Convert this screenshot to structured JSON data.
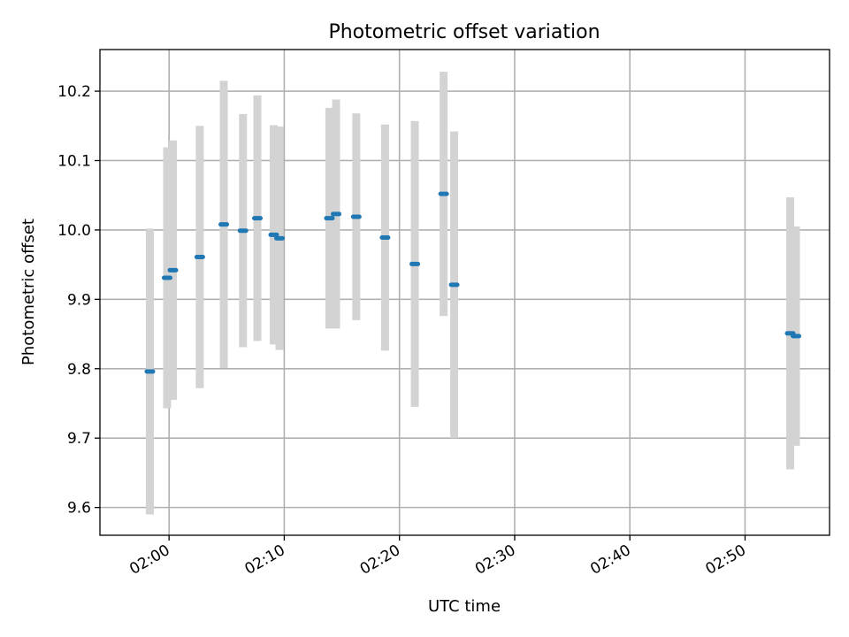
{
  "chart_data": {
    "type": "scatter",
    "title": "Photometric offset variation",
    "xlabel": "UTC time",
    "ylabel": "Photometric offset",
    "x_is_time": true,
    "xlim": [
      "01:54:00",
      "02:57:20"
    ],
    "ylim": [
      9.56,
      10.26
    ],
    "x_ticks": [
      "02:00",
      "02:10",
      "02:20",
      "02:30",
      "02:40",
      "02:50"
    ],
    "y_ticks": [
      "9.6",
      "9.7",
      "9.8",
      "9.9",
      "10.0",
      "10.1",
      "10.2"
    ],
    "grid": true,
    "point_color": "#1f77b4",
    "errorbar_color": "#d3d3d3",
    "points": [
      {
        "x": "01:58:20",
        "y": 9.796,
        "yerr": 0.206
      },
      {
        "x": "01:59:50",
        "y": 9.931,
        "yerr": 0.188
      },
      {
        "x": "02:00:20",
        "y": 9.942,
        "yerr": 0.187
      },
      {
        "x": "02:02:40",
        "y": 9.961,
        "yerr": 0.189
      },
      {
        "x": "02:04:45",
        "y": 10.008,
        "yerr": 0.207
      },
      {
        "x": "02:06:25",
        "y": 9.999,
        "yerr": 0.168
      },
      {
        "x": "02:07:40",
        "y": 10.017,
        "yerr": 0.177
      },
      {
        "x": "02:09:05",
        "y": 9.993,
        "yerr": 0.158
      },
      {
        "x": "02:09:35",
        "y": 9.988,
        "yerr": 0.161
      },
      {
        "x": "02:13:55",
        "y": 10.017,
        "yerr": 0.159
      },
      {
        "x": "02:14:30",
        "y": 10.023,
        "yerr": 0.165
      },
      {
        "x": "02:16:15",
        "y": 10.019,
        "yerr": 0.149
      },
      {
        "x": "02:18:45",
        "y": 9.989,
        "yerr": 0.163
      },
      {
        "x": "02:21:20",
        "y": 9.951,
        "yerr": 0.206
      },
      {
        "x": "02:23:50",
        "y": 10.052,
        "yerr": 0.176
      },
      {
        "x": "02:24:45",
        "y": 9.921,
        "yerr": 0.221
      },
      {
        "x": "02:53:55",
        "y": 9.851,
        "yerr": 0.196
      },
      {
        "x": "02:54:25",
        "y": 9.847,
        "yerr": 0.158
      }
    ]
  }
}
